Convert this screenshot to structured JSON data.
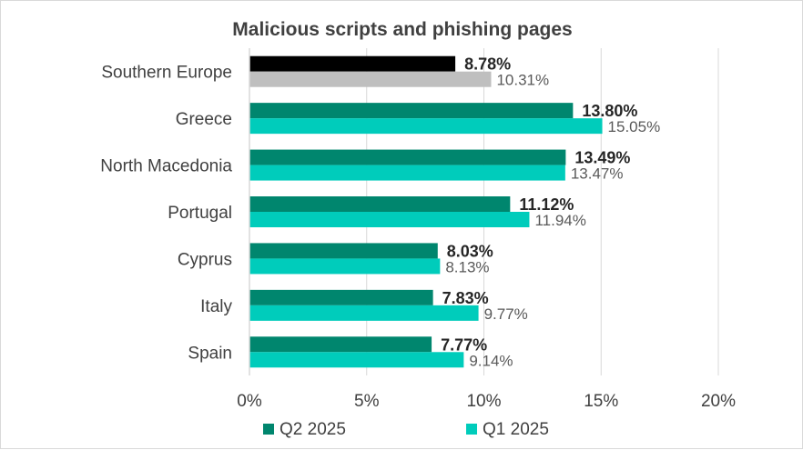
{
  "chart_data": {
    "type": "bar",
    "orientation": "horizontal",
    "title": "Malicious scripts and phishing pages",
    "categories": [
      "Southern Europe",
      "Greece",
      "North Macedonia",
      "Portugal",
      "Cyprus",
      "Italy",
      "Spain"
    ],
    "series": [
      {
        "name": "Q2 2025",
        "color": "#00866e",
        "highlight_color": "#000000",
        "values": [
          8.78,
          13.8,
          13.49,
          11.12,
          8.03,
          7.83,
          7.77
        ],
        "labels": [
          "8.78%",
          "13.80%",
          "13.49%",
          "11.12%",
          "8.03%",
          "7.83%",
          "7.77%"
        ]
      },
      {
        "name": "Q1 2025",
        "color": "#00ccbb",
        "highlight_color": "#bfbfbf",
        "values": [
          10.31,
          15.05,
          13.47,
          11.94,
          8.13,
          9.77,
          9.14
        ],
        "labels": [
          "10.31%",
          "15.05%",
          "13.47%",
          "11.94%",
          "8.13%",
          "9.77%",
          "9.14%"
        ]
      }
    ],
    "highlighted_category": "Southern Europe",
    "xlim": [
      0,
      20
    ],
    "xticks": [
      0,
      5,
      10,
      15,
      20
    ],
    "xtick_labels": [
      "0%",
      "5%",
      "10%",
      "15%",
      "20%"
    ],
    "grid": true,
    "legend": "bottom"
  }
}
